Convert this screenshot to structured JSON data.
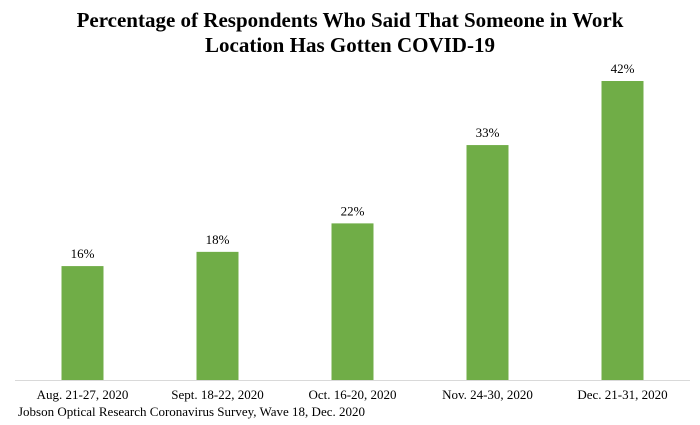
{
  "chart_data": {
    "type": "bar",
    "title_lines": [
      "Percentage of Respondents Who Said That Someone in Work",
      "Location Has Gotten COVID-19"
    ],
    "categories": [
      "Aug. 21-27, 2020",
      "Sept. 18-22, 2020",
      "Oct. 16-20, 2020",
      "Nov. 24-30, 2020",
      "Dec. 21-31, 2020"
    ],
    "values": [
      16,
      18,
      22,
      33,
      42
    ],
    "data_labels": [
      "16%",
      "18%",
      "22%",
      "33%",
      "42%"
    ],
    "value_unit": "%",
    "ylim": [
      0,
      42
    ],
    "grid": false,
    "legend": "none",
    "bar_color": "#70AD47",
    "axis_color": "#D9D9D9"
  },
  "footer": {
    "source": "Jobson Optical Research Coronavirus Survey, Wave 18, Dec. 2020"
  }
}
